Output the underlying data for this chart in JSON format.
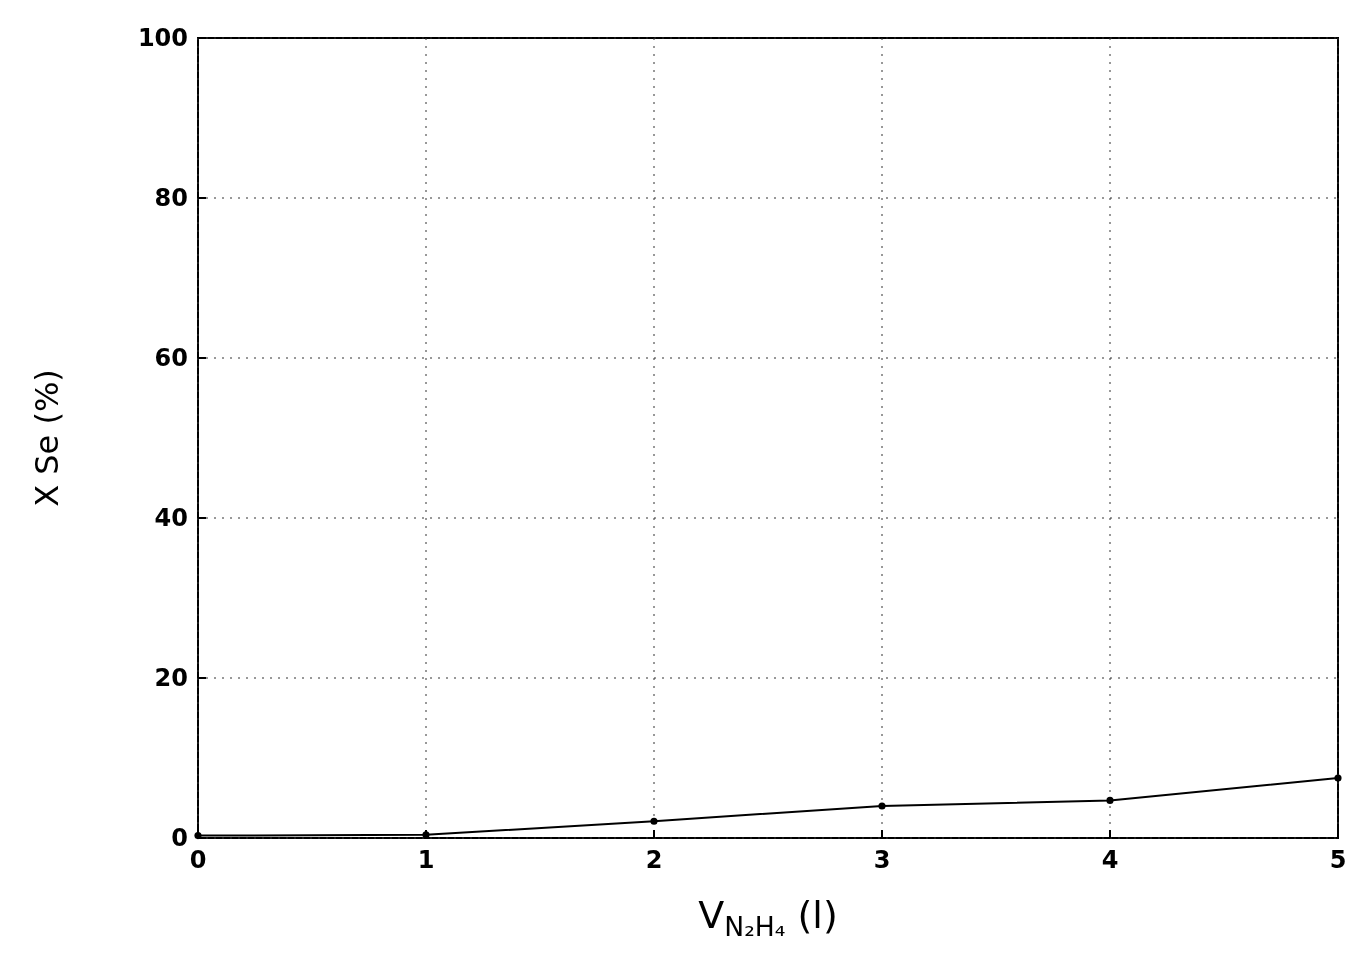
{
  "chart_data": {
    "type": "line",
    "xlabel": "V$_{N₂H₄}$ (l)",
    "ylabel": "X Se (%)",
    "x": [
      0,
      1,
      2,
      3,
      4,
      5
    ],
    "series": [
      {
        "color": "#000000",
        "values": [
          0.3,
          0.4,
          2.1,
          4,
          4.7,
          7.5
        ]
      }
    ],
    "xlim": [
      0,
      5
    ],
    "xticks": [
      0,
      1,
      2,
      3,
      4,
      5
    ],
    "ylim": [
      0,
      100
    ],
    "yticks": [
      0,
      20,
      40,
      60,
      80,
      100
    ],
    "grid": true,
    "marker": "circle",
    "line_style": "solid"
  }
}
